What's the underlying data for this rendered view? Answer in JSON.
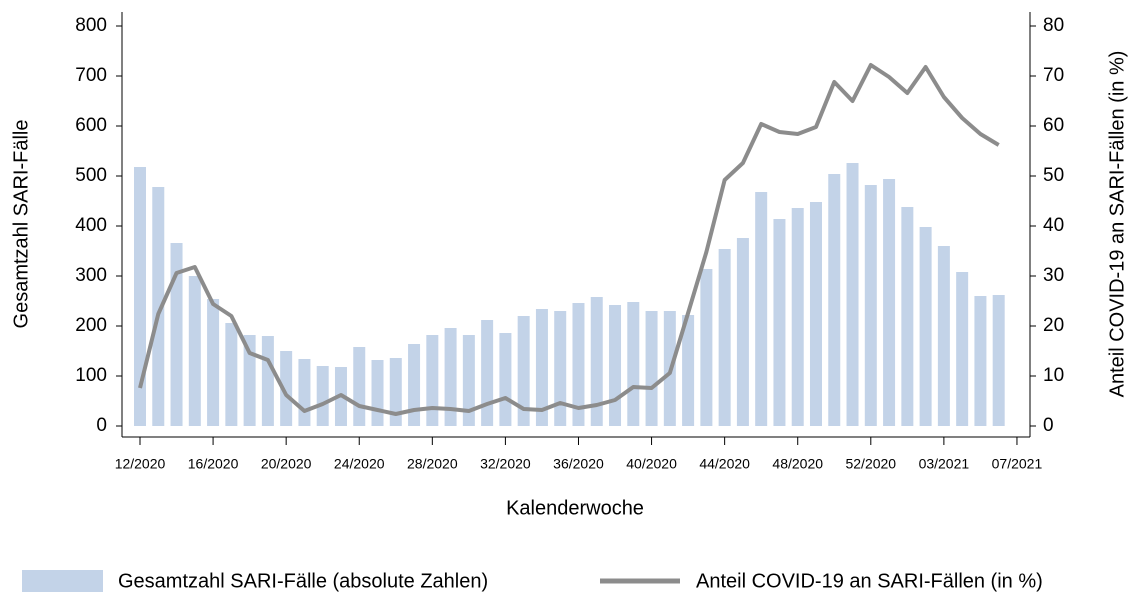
{
  "chart_data": {
    "type": "combo",
    "xlabel": "Kalenderwoche",
    "ylabel": "Gesamtzahl SARI-Fälle",
    "y2label": "Anteil COVID-19 an SARI-Fällen (in %)",
    "categories": [
      "12/2020",
      null,
      null,
      null,
      "16/2020",
      null,
      null,
      null,
      "20/2020",
      null,
      null,
      null,
      "24/2020",
      null,
      null,
      null,
      "28/2020",
      null,
      null,
      null,
      "32/2020",
      null,
      null,
      null,
      "36/2020",
      null,
      null,
      null,
      "40/2020",
      null,
      null,
      null,
      "44/2020",
      null,
      null,
      null,
      "48/2020",
      null,
      null,
      null,
      "52/2020",
      null,
      null,
      null,
      "03/2021",
      null,
      null,
      null,
      "07/2021"
    ],
    "series": [
      {
        "name": "Gesamtzahl SARI-Fälle (absolute Zahlen)",
        "type": "bar",
        "color": "#c3d3e8",
        "values": [
          518,
          478,
          366,
          300,
          254,
          206,
          182,
          180,
          150,
          134,
          120,
          118,
          158,
          132,
          136,
          164,
          182,
          196,
          182,
          212,
          186,
          220,
          234,
          230,
          246,
          258,
          242,
          248,
          230,
          230,
          222,
          314,
          354,
          376,
          468,
          414,
          436,
          448,
          504,
          526,
          482,
          494,
          438,
          398,
          360,
          308,
          260,
          262,
          null
        ]
      },
      {
        "name": "Anteil COVID-19 an SARI-Fällen (in %)",
        "type": "line",
        "axis": "y2",
        "color": "#8c8c8c",
        "values": [
          7.6,
          22.4,
          30.6,
          31.8,
          24.4,
          22,
          14.6,
          13.2,
          6.2,
          3,
          4.4,
          6.2,
          4,
          3.2,
          2.4,
          3.2,
          3.6,
          3.4,
          3,
          4.4,
          5.6,
          3.4,
          3.2,
          4.6,
          3.6,
          4.2,
          5.2,
          7.8,
          7.6,
          10.6,
          22.6,
          34.8,
          49.2,
          52.6,
          60.4,
          58.8,
          58.4,
          59.8,
          68.8,
          65,
          72.2,
          69.8,
          66.6,
          71.8,
          65.8,
          61.6,
          58.4,
          56.2,
          null
        ]
      }
    ],
    "ylim": [
      0,
      800
    ],
    "yticks": [
      0,
      100,
      200,
      300,
      400,
      500,
      600,
      700,
      800
    ],
    "y2lim": [
      0,
      80
    ],
    "y2ticks": [
      0,
      10,
      20,
      30,
      40,
      50,
      60,
      70,
      80
    ]
  }
}
